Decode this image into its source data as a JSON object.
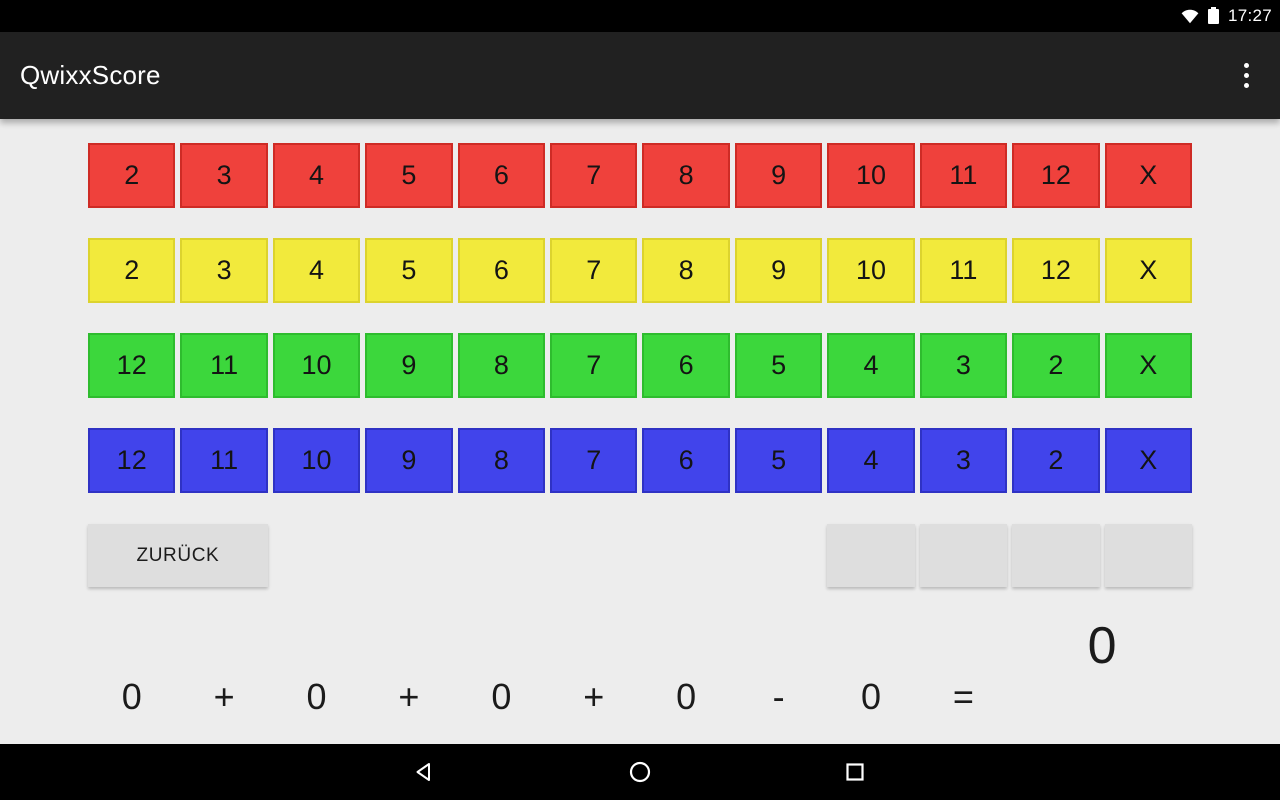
{
  "status_bar": {
    "time": "17:27",
    "icons": [
      "wifi-icon",
      "battery-icon"
    ]
  },
  "app_bar": {
    "title": "QwixxScore",
    "overflow_menu_icon": "more-options-icon"
  },
  "board": {
    "rows": [
      {
        "name": "red",
        "fill": "#EF413C",
        "border": "#CE2B25",
        "cells": [
          "2",
          "3",
          "4",
          "5",
          "6",
          "7",
          "8",
          "9",
          "10",
          "11",
          "12",
          "X"
        ]
      },
      {
        "name": "yellow",
        "fill": "#F2EA3C",
        "border": "#DCD32E",
        "cells": [
          "2",
          "3",
          "4",
          "5",
          "6",
          "7",
          "8",
          "9",
          "10",
          "11",
          "12",
          "X"
        ]
      },
      {
        "name": "green",
        "fill": "#3CD73C",
        "border": "#2EBC2E",
        "cells": [
          "12",
          "11",
          "10",
          "9",
          "8",
          "7",
          "6",
          "5",
          "4",
          "3",
          "2",
          "X"
        ]
      },
      {
        "name": "blue",
        "fill": "#4144EB",
        "border": "#2F32C4",
        "cells": [
          "12",
          "11",
          "10",
          "9",
          "8",
          "7",
          "6",
          "5",
          "4",
          "3",
          "2",
          "X"
        ]
      }
    ]
  },
  "actions": {
    "back_label": "ZURÜCK",
    "penalty_slots": 4
  },
  "score": {
    "items": [
      "0",
      "+",
      "0",
      "+",
      "0",
      "+",
      "0",
      "-",
      "0",
      "="
    ],
    "total": "0"
  },
  "nav_bar": {
    "icons": [
      "back-icon",
      "home-icon",
      "recents-icon"
    ]
  },
  "colors": {
    "background": "#EDEDED",
    "status_bar": "#000000",
    "app_bar": "#212121",
    "nav_bar": "#000000",
    "button_gray": "#DEDEDE",
    "text_dark": "#1b1b1b",
    "text_light": "#ffffff"
  }
}
